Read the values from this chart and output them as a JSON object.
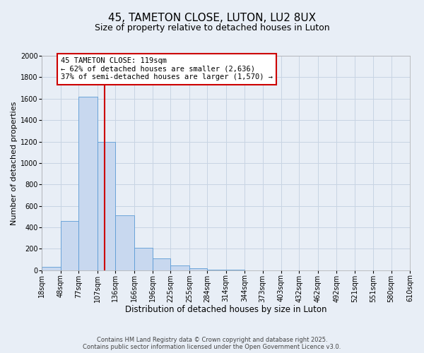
{
  "title": "45, TAMETON CLOSE, LUTON, LU2 8UX",
  "subtitle": "Size of property relative to detached houses in Luton",
  "xlabel": "Distribution of detached houses by size in Luton",
  "ylabel": "Number of detached properties",
  "bin_edges": [
    18,
    48,
    77,
    107,
    136,
    166,
    196,
    225,
    255,
    284,
    314,
    344,
    373,
    403,
    432,
    462,
    492,
    521,
    551,
    580,
    610
  ],
  "bin_labels": [
    "18sqm",
    "48sqm",
    "77sqm",
    "107sqm",
    "136sqm",
    "166sqm",
    "196sqm",
    "225sqm",
    "255sqm",
    "284sqm",
    "314sqm",
    "344sqm",
    "373sqm",
    "403sqm",
    "432sqm",
    "462sqm",
    "492sqm",
    "521sqm",
    "551sqm",
    "580sqm",
    "610sqm"
  ],
  "counts": [
    30,
    460,
    1620,
    1200,
    510,
    210,
    110,
    45,
    20,
    8,
    2,
    0,
    0,
    0,
    0,
    0,
    0,
    0,
    0,
    0
  ],
  "bar_facecolor": "#c8d8ef",
  "bar_edgecolor": "#5b9bd5",
  "property_size": 119,
  "vline_color": "#cc0000",
  "annotation_text": "45 TAMETON CLOSE: 119sqm\n← 62% of detached houses are smaller (2,636)\n37% of semi-detached houses are larger (1,570) →",
  "annotation_box_edgecolor": "#cc0000",
  "annotation_box_facecolor": "#ffffff",
  "ylim": [
    0,
    2000
  ],
  "yticks": [
    0,
    200,
    400,
    600,
    800,
    1000,
    1200,
    1400,
    1600,
    1800,
    2000
  ],
  "grid_color": "#c8d4e3",
  "bg_color": "#e8eef6",
  "footer_line1": "Contains HM Land Registry data © Crown copyright and database right 2025.",
  "footer_line2": "Contains public sector information licensed under the Open Government Licence v3.0.",
  "title_fontsize": 11,
  "subtitle_fontsize": 9,
  "xlabel_fontsize": 8.5,
  "ylabel_fontsize": 8,
  "tick_fontsize": 7,
  "footer_fontsize": 6,
  "ann_fontsize": 7.5
}
